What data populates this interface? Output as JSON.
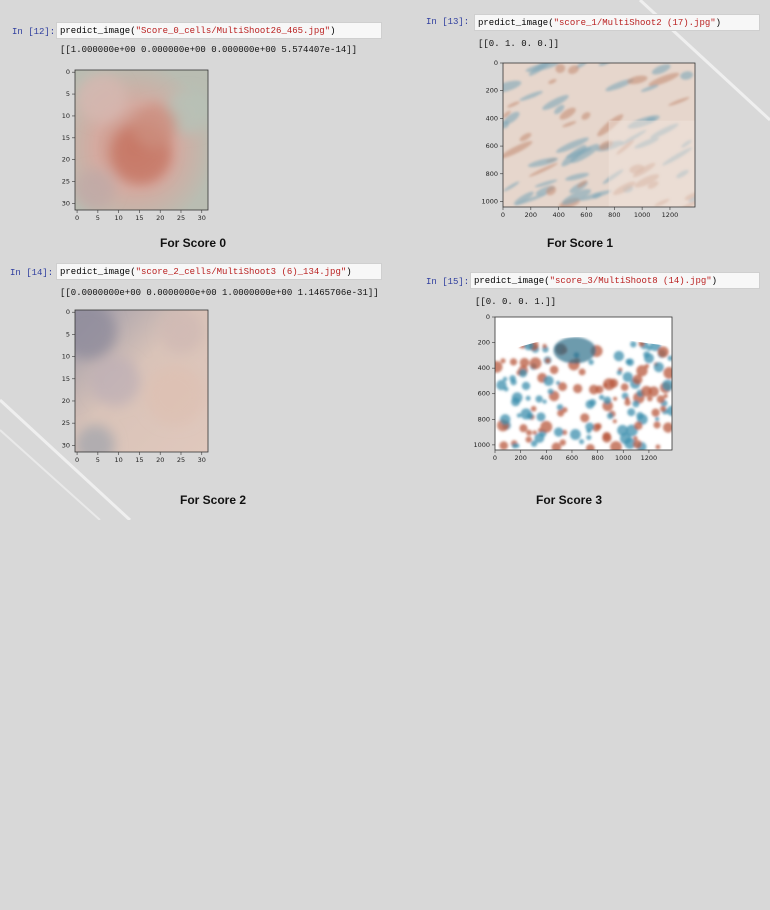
{
  "cells": [
    {
      "prompt": "In [12]:",
      "code_fn": "predict_image(",
      "code_arg": "\"Score_0_cells/MultiShoot26_465.jpg\"",
      "code_end": ")",
      "output": "[[1.000000e+00 0.000000e+00 0.000000e+00 5.574407e-14]]",
      "yticks": [
        "0",
        "5",
        "10",
        "15",
        "20",
        "25",
        "30"
      ],
      "xticks": [
        "0",
        "5",
        "10",
        "15",
        "20",
        "25",
        "30"
      ],
      "caption": "For Score 0"
    },
    {
      "prompt": "In [13]:",
      "code_fn": "predict_image(",
      "code_arg": "\"score_1/MultiShoot2 (17).jpg\"",
      "code_end": ")",
      "output": "[[0. 1. 0. 0.]]",
      "yticks": [
        "0",
        "200",
        "400",
        "600",
        "800",
        "1000"
      ],
      "xticks": [
        "0",
        "200",
        "400",
        "600",
        "800",
        "1000",
        "1200"
      ],
      "caption": "For Score 1"
    },
    {
      "prompt": "In [14]:",
      "code_fn": "predict_image(",
      "code_arg": "\"score_2_cells/MultiShoot3 (6)_134.jpg\"",
      "code_end": ")",
      "output": "[[0.0000000e+00 0.0000000e+00 1.0000000e+00 1.1465706e-31]]",
      "yticks": [
        "0",
        "5",
        "10",
        "15",
        "20",
        "25",
        "30"
      ],
      "xticks": [
        "0",
        "5",
        "10",
        "15",
        "20",
        "25",
        "30"
      ],
      "caption": "For Score 2"
    },
    {
      "prompt": "In [15]:",
      "code_fn": "predict_image(",
      "code_arg": "\"score_3/MultiShoot8 (14).jpg\"",
      "code_end": ")",
      "output": "[[0. 0. 0. 1.]]",
      "yticks": [
        "0",
        "200",
        "400",
        "600",
        "800",
        "1000"
      ],
      "xticks": [
        "0",
        "200",
        "400",
        "600",
        "800",
        "1000",
        "1200"
      ],
      "caption": "For Score 3"
    }
  ]
}
